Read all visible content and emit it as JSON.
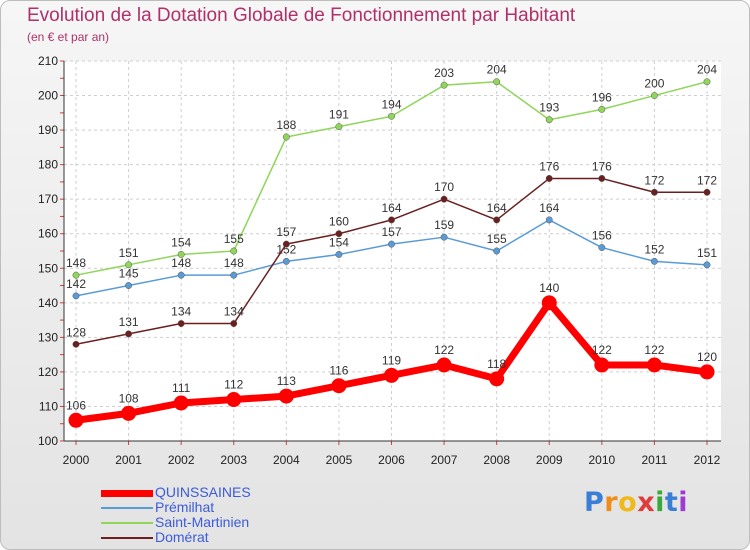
{
  "title": "Evolution de la Dotation Globale de Fonctionnement par Habitant",
  "subtitle": "(en € et par an)",
  "colors": {
    "title": "#b0306a",
    "grid": "#cfcfcf",
    "axis": "#333333"
  },
  "chart_data": {
    "type": "line",
    "x": [
      2000,
      2001,
      2002,
      2003,
      2004,
      2005,
      2006,
      2007,
      2008,
      2009,
      2010,
      2011,
      2012
    ],
    "ylim": [
      100,
      210
    ],
    "yticks": [
      100,
      110,
      120,
      130,
      140,
      150,
      160,
      170,
      180,
      190,
      200,
      210
    ],
    "grid": true,
    "series": [
      {
        "name": "QUINSSAINES",
        "color": "#ff0000",
        "bold": true,
        "values": [
          106,
          108,
          111,
          112,
          113,
          116,
          119,
          122,
          118,
          140,
          122,
          122,
          120
        ]
      },
      {
        "name": "Prémilhat",
        "color": "#5b9bd5",
        "values": [
          142,
          145,
          148,
          148,
          152,
          154,
          157,
          159,
          155,
          164,
          156,
          152,
          151
        ]
      },
      {
        "name": "Saint-Martinien",
        "color": "#8fd65a",
        "values": [
          148,
          151,
          154,
          155,
          188,
          191,
          194,
          203,
          204,
          193,
          196,
          200,
          204
        ]
      },
      {
        "name": "Domérat",
        "color": "#6b1f1f",
        "values": [
          128,
          131,
          134,
          134,
          157,
          160,
          164,
          170,
          164,
          176,
          176,
          172,
          172
        ]
      }
    ]
  },
  "legend": {
    "items": [
      {
        "label": "QUINSSAINES",
        "color": "#ff0000",
        "text_color": "#3b5bdb"
      },
      {
        "label": "Prémilhat",
        "color": "#5b9bd5",
        "text_color": "#3b5bdb"
      },
      {
        "label": "Saint-Martinien",
        "color": "#8fd65a",
        "text_color": "#3b5bdb"
      },
      {
        "label": "Domérat",
        "color": "#6b1f1f",
        "text_color": "#3b5bdb"
      }
    ]
  },
  "logo": {
    "letters": [
      "P",
      "r",
      "o",
      "x",
      "i",
      "t",
      "i"
    ],
    "colors": [
      "#3a7fd5",
      "#f08c1a",
      "#f0b81a",
      "#e03a3a",
      "#3aa83a",
      "#3a7fd5",
      "#a03ad5"
    ]
  }
}
